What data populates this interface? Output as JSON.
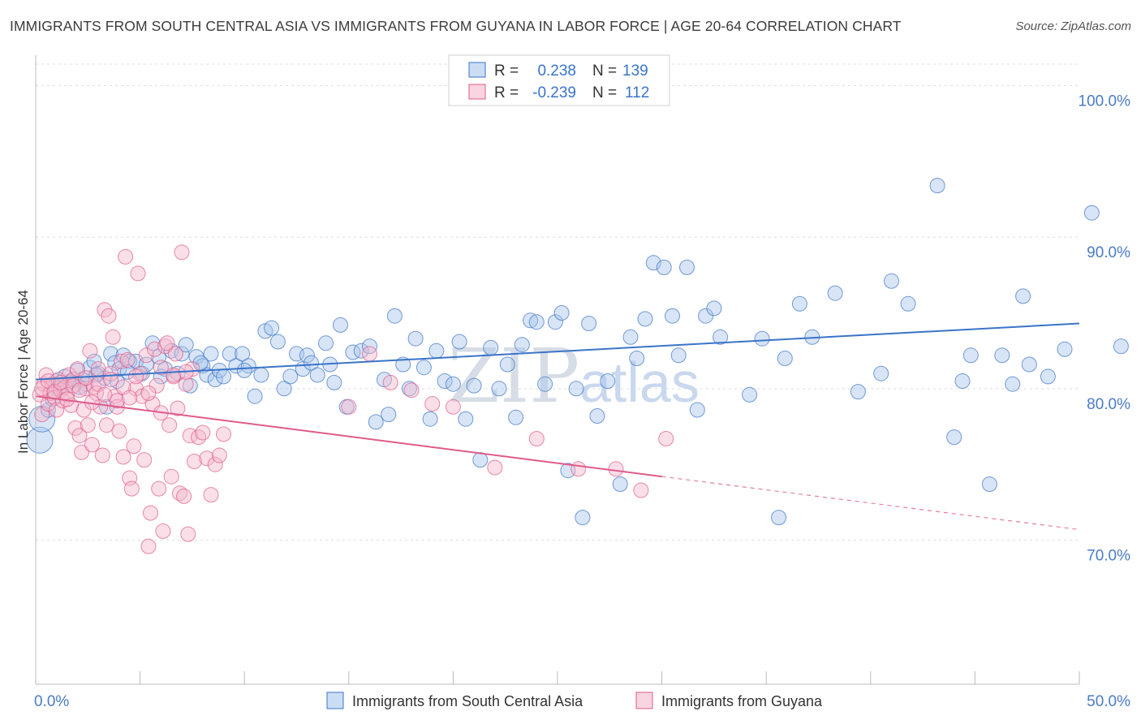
{
  "header": {
    "title": "IMMIGRANTS FROM SOUTH CENTRAL ASIA VS IMMIGRANTS FROM GUYANA IN LABOR FORCE | AGE 20-64 CORRELATION CHART",
    "source": "Source: ZipAtlas.com"
  },
  "watermark": {
    "part1": "ZIP",
    "part2": "atlas"
  },
  "colors": {
    "blue": "#3a74c8",
    "blue_fill": "#a9c6ec",
    "pink": "#e05a8a",
    "pink_fill": "#f5b8cd",
    "grid": "#dddddd",
    "tick_text": "#4a7bc8"
  },
  "legend": {
    "rows": [
      {
        "r_label": "R =",
        "r_value": "0.238",
        "n_label": "N =",
        "n_value": "139"
      },
      {
        "r_label": "R =",
        "r_value": "-0.239",
        "n_label": "N =",
        "n_value": "112"
      }
    ]
  },
  "chart_data": {
    "type": "scatter",
    "xlabel": "",
    "ylabel": "In Labor Force | Age 20-64",
    "xlim": [
      0,
      50
    ],
    "ylim": [
      60.5,
      102
    ],
    "x_tick_labels": [
      "0.0%",
      "50.0%"
    ],
    "y_ticks": [
      70,
      80,
      90,
      100
    ],
    "y_tick_labels": [
      "70.0%",
      "80.0%",
      "90.0%",
      "100.0%"
    ],
    "grid": true,
    "legend_placement": "top-center",
    "series": [
      {
        "name": "Immigrants from South Central Asia",
        "color": "#3a74c8",
        "trend": {
          "x": [
            0,
            50
          ],
          "y": [
            80.6,
            84.3
          ],
          "dashed_from": null
        },
        "points": [
          [
            0.2,
            76.6
          ],
          [
            0.3,
            78.0
          ],
          [
            0.6,
            78.6
          ],
          [
            0.8,
            79.3
          ],
          [
            1.0,
            80.5
          ],
          [
            1.2,
            80.2
          ],
          [
            1.4,
            80.8
          ],
          [
            1.7,
            80.5
          ],
          [
            2.0,
            81.2
          ],
          [
            2.2,
            80.6
          ],
          [
            2.4,
            80.3
          ],
          [
            2.6,
            81.4
          ],
          [
            2.8,
            81.8
          ],
          [
            3.0,
            81.0
          ],
          [
            3.3,
            80.7
          ],
          [
            3.4,
            78.8
          ],
          [
            3.6,
            82.3
          ],
          [
            3.8,
            81.7
          ],
          [
            4.0,
            81.3
          ],
          [
            4.2,
            82.2
          ],
          [
            4.5,
            81.8
          ],
          [
            4.8,
            81.8
          ],
          [
            5.1,
            81.0
          ],
          [
            5.3,
            81.6
          ],
          [
            5.6,
            83.0
          ],
          [
            5.9,
            82.1
          ],
          [
            6.2,
            81.3
          ],
          [
            6.5,
            82.5
          ],
          [
            6.8,
            81.0
          ],
          [
            7.0,
            82.3
          ],
          [
            7.2,
            82.9
          ],
          [
            7.4,
            80.2
          ],
          [
            7.7,
            82.1
          ],
          [
            8.0,
            81.5
          ],
          [
            8.2,
            80.9
          ],
          [
            8.4,
            82.3
          ],
          [
            8.6,
            80.6
          ],
          [
            8.8,
            81.2
          ],
          [
            9.0,
            80.8
          ],
          [
            9.3,
            82.3
          ],
          [
            9.6,
            81.5
          ],
          [
            9.9,
            82.3
          ],
          [
            10.2,
            81.5
          ],
          [
            10.5,
            79.5
          ],
          [
            10.8,
            80.9
          ],
          [
            11.0,
            83.8
          ],
          [
            11.3,
            84.0
          ],
          [
            11.6,
            83.1
          ],
          [
            11.9,
            80.0
          ],
          [
            12.2,
            80.8
          ],
          [
            12.5,
            82.3
          ],
          [
            12.8,
            81.3
          ],
          [
            13.0,
            82.2
          ],
          [
            13.2,
            81.7
          ],
          [
            13.5,
            80.9
          ],
          [
            13.9,
            83.0
          ],
          [
            14.1,
            81.6
          ],
          [
            14.3,
            80.4
          ],
          [
            14.6,
            84.2
          ],
          [
            14.9,
            78.8
          ],
          [
            15.2,
            82.4
          ],
          [
            15.6,
            82.5
          ],
          [
            16.0,
            82.8
          ],
          [
            16.3,
            77.8
          ],
          [
            16.7,
            80.6
          ],
          [
            16.9,
            78.3
          ],
          [
            17.2,
            84.8
          ],
          [
            17.6,
            81.6
          ],
          [
            17.9,
            80.0
          ],
          [
            18.2,
            83.3
          ],
          [
            18.6,
            81.4
          ],
          [
            18.9,
            78.0
          ],
          [
            19.2,
            82.5
          ],
          [
            19.6,
            80.5
          ],
          [
            20.0,
            80.3
          ],
          [
            20.3,
            83.1
          ],
          [
            20.6,
            78.0
          ],
          [
            21.0,
            80.2
          ],
          [
            21.3,
            75.3
          ],
          [
            21.8,
            82.7
          ],
          [
            22.2,
            80.0
          ],
          [
            22.6,
            81.6
          ],
          [
            23.0,
            78.1
          ],
          [
            23.3,
            82.9
          ],
          [
            23.7,
            84.5
          ],
          [
            24.0,
            84.4
          ],
          [
            24.4,
            80.3
          ],
          [
            24.9,
            84.4
          ],
          [
            25.2,
            85.0
          ],
          [
            25.5,
            74.6
          ],
          [
            25.9,
            80.0
          ],
          [
            26.2,
            71.5
          ],
          [
            26.5,
            84.3
          ],
          [
            26.9,
            78.2
          ],
          [
            27.4,
            80.5
          ],
          [
            28.0,
            73.7
          ],
          [
            28.5,
            83.4
          ],
          [
            28.8,
            82.0
          ],
          [
            29.2,
            84.6
          ],
          [
            29.6,
            88.3
          ],
          [
            30.1,
            88.0
          ],
          [
            30.5,
            84.8
          ],
          [
            30.8,
            82.2
          ],
          [
            31.2,
            88.0
          ],
          [
            31.7,
            78.6
          ],
          [
            32.1,
            84.8
          ],
          [
            32.5,
            85.3
          ],
          [
            32.8,
            83.4
          ],
          [
            34.2,
            79.6
          ],
          [
            34.8,
            83.3
          ],
          [
            35.6,
            71.5
          ],
          [
            35.9,
            82.0
          ],
          [
            36.6,
            85.6
          ],
          [
            37.2,
            83.4
          ],
          [
            38.3,
            86.3
          ],
          [
            39.4,
            79.8
          ],
          [
            40.5,
            81.0
          ],
          [
            41.0,
            87.1
          ],
          [
            41.8,
            85.6
          ],
          [
            43.2,
            93.4
          ],
          [
            44.0,
            76.8
          ],
          [
            44.4,
            80.5
          ],
          [
            44.8,
            82.2
          ],
          [
            45.7,
            73.7
          ],
          [
            46.3,
            82.2
          ],
          [
            46.8,
            80.3
          ],
          [
            47.3,
            86.1
          ],
          [
            47.6,
            81.6
          ],
          [
            48.5,
            80.8
          ],
          [
            49.3,
            82.6
          ],
          [
            50.6,
            91.6
          ],
          [
            52.0,
            82.8
          ],
          [
            1.1,
            80.0
          ],
          [
            1.6,
            80.4
          ],
          [
            2.1,
            80.1
          ],
          [
            2.9,
            80.9
          ],
          [
            3.9,
            80.5
          ],
          [
            4.4,
            81.1
          ],
          [
            6.0,
            80.8
          ],
          [
            7.9,
            81.7
          ],
          [
            10.0,
            81.2
          ]
        ]
      },
      {
        "name": "Immigrants from Guyana",
        "color": "#e05a8a",
        "trend": {
          "x": [
            0,
            30,
            50
          ],
          "y": [
            79.5,
            74.2,
            70.7
          ],
          "dashed_from": 30
        },
        "points": [
          [
            0.2,
            79.6
          ],
          [
            0.3,
            78.3
          ],
          [
            0.4,
            80.3
          ],
          [
            0.5,
            80.9
          ],
          [
            0.6,
            79.0
          ],
          [
            0.7,
            79.7
          ],
          [
            0.8,
            80.3
          ],
          [
            0.9,
            79.4
          ],
          [
            1.0,
            78.6
          ],
          [
            1.1,
            80.6
          ],
          [
            1.2,
            79.9
          ],
          [
            1.3,
            79.2
          ],
          [
            1.4,
            80.1
          ],
          [
            1.5,
            79.6
          ],
          [
            1.6,
            80.9
          ],
          [
            1.7,
            78.9
          ],
          [
            1.8,
            80.6
          ],
          [
            1.9,
            77.4
          ],
          [
            2.0,
            81.3
          ],
          [
            2.1,
            76.9
          ],
          [
            2.2,
            75.8
          ],
          [
            2.3,
            78.6
          ],
          [
            2.4,
            80.0
          ],
          [
            2.5,
            77.6
          ],
          [
            2.6,
            82.5
          ],
          [
            2.7,
            76.3
          ],
          [
            2.8,
            80.1
          ],
          [
            2.9,
            79.7
          ],
          [
            3.0,
            81.3
          ],
          [
            3.1,
            78.8
          ],
          [
            3.2,
            75.6
          ],
          [
            3.3,
            85.2
          ],
          [
            3.4,
            77.6
          ],
          [
            3.5,
            84.8
          ],
          [
            3.6,
            81.0
          ],
          [
            3.7,
            83.4
          ],
          [
            3.8,
            79.5
          ],
          [
            3.9,
            78.8
          ],
          [
            4.0,
            77.2
          ],
          [
            4.1,
            81.8
          ],
          [
            4.2,
            75.5
          ],
          [
            4.3,
            88.7
          ],
          [
            4.4,
            81.9
          ],
          [
            4.5,
            74.1
          ],
          [
            4.6,
            73.4
          ],
          [
            4.7,
            76.2
          ],
          [
            4.8,
            80.0
          ],
          [
            4.9,
            87.6
          ],
          [
            5.0,
            81.0
          ],
          [
            5.1,
            79.5
          ],
          [
            5.2,
            75.3
          ],
          [
            5.3,
            82.2
          ],
          [
            5.4,
            69.6
          ],
          [
            5.5,
            71.8
          ],
          [
            5.6,
            79.0
          ],
          [
            5.7,
            82.6
          ],
          [
            5.8,
            80.2
          ],
          [
            5.9,
            73.4
          ],
          [
            6.0,
            78.4
          ],
          [
            6.1,
            70.6
          ],
          [
            6.2,
            82.8
          ],
          [
            6.3,
            83.0
          ],
          [
            6.4,
            77.6
          ],
          [
            6.5,
            74.2
          ],
          [
            6.6,
            80.8
          ],
          [
            6.7,
            82.3
          ],
          [
            6.8,
            78.7
          ],
          [
            6.9,
            73.1
          ],
          [
            7.0,
            89.0
          ],
          [
            7.1,
            72.9
          ],
          [
            7.2,
            80.3
          ],
          [
            7.3,
            70.4
          ],
          [
            7.4,
            76.9
          ],
          [
            7.5,
            81.3
          ],
          [
            7.6,
            75.2
          ],
          [
            7.8,
            76.8
          ],
          [
            8.0,
            77.1
          ],
          [
            8.2,
            75.4
          ],
          [
            8.4,
            73.0
          ],
          [
            8.6,
            75.0
          ],
          [
            8.8,
            75.6
          ],
          [
            9.0,
            77.0
          ],
          [
            15.0,
            78.8
          ],
          [
            16.0,
            82.3
          ],
          [
            17.0,
            80.4
          ],
          [
            18.0,
            79.9
          ],
          [
            19.0,
            79.0
          ],
          [
            20.0,
            78.8
          ],
          [
            22.0,
            74.8
          ],
          [
            24.0,
            76.7
          ],
          [
            26.0,
            74.7
          ],
          [
            27.8,
            74.7
          ],
          [
            29.0,
            73.3
          ],
          [
            30.2,
            76.7
          ],
          [
            0.3,
            80.0
          ],
          [
            0.6,
            80.5
          ],
          [
            0.9,
            79.8
          ],
          [
            1.2,
            80.4
          ],
          [
            1.5,
            79.3
          ],
          [
            1.8,
            80.2
          ],
          [
            2.1,
            79.9
          ],
          [
            2.4,
            80.7
          ],
          [
            2.7,
            79.1
          ],
          [
            3.0,
            80.3
          ],
          [
            3.3,
            79.6
          ],
          [
            3.6,
            80.6
          ],
          [
            3.9,
            79.2
          ],
          [
            4.2,
            80.1
          ],
          [
            4.5,
            79.4
          ],
          [
            4.8,
            80.8
          ],
          [
            5.4,
            79.7
          ],
          [
            6.0,
            81.4
          ],
          [
            6.6,
            80.9
          ],
          [
            7.2,
            81.1
          ]
        ]
      }
    ]
  }
}
